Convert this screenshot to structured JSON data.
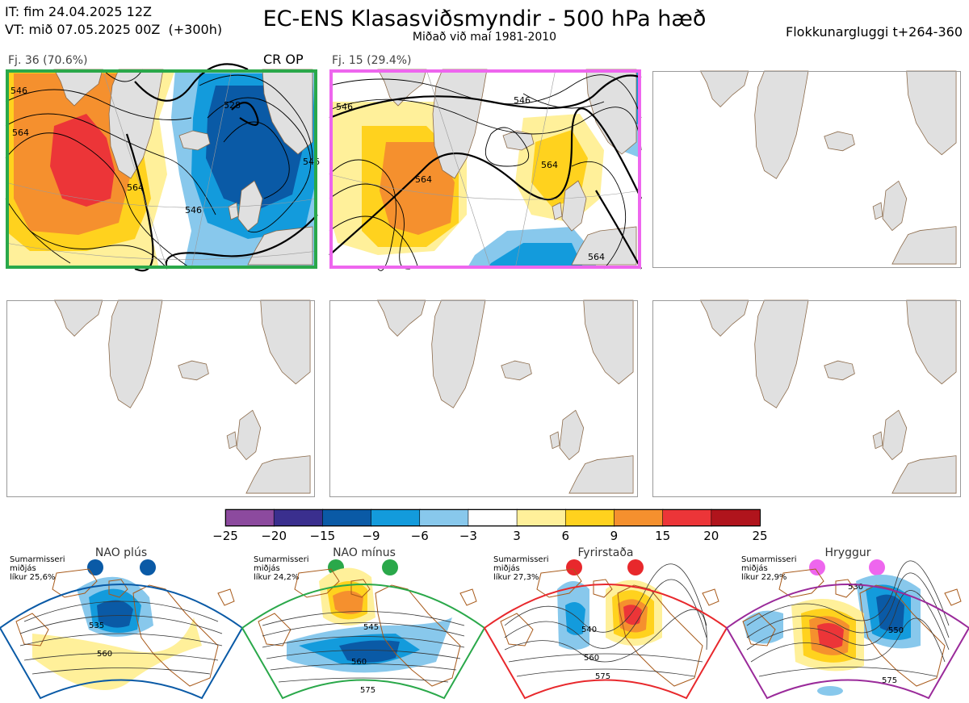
{
  "header": {
    "it_line": "IT: fim 24.04.2025 12Z",
    "vt_line": "VT: mið 07.05.2025 00Z  (+300h)",
    "title": "EC-ENS Klasasviðsmyndir - 500 hPa hæð",
    "subtitle": "Miðað við maí 1981-2010",
    "window": "Flokkunargluggi t+264-360"
  },
  "panels": [
    {
      "label": "Fj. 36 (70.6%)",
      "tag": "CR OP",
      "border": "#2aa84a",
      "contours": [
        "546",
        "528",
        "564",
        "546",
        "546",
        "564"
      ]
    },
    {
      "label": "Fj. 15 (29.4%)",
      "tag": "",
      "border": "#ee66ee",
      "contours": [
        "546",
        "564",
        "546",
        "564",
        "564"
      ]
    },
    {
      "label": "",
      "tag": "",
      "border": "#999999",
      "contours": []
    },
    {
      "label": "",
      "tag": "",
      "border": "#999999",
      "contours": []
    },
    {
      "label": "",
      "tag": "",
      "border": "#999999",
      "contours": []
    },
    {
      "label": "",
      "tag": "",
      "border": "#999999",
      "contours": []
    }
  ],
  "colorbar": {
    "colors": [
      "#8c4a9e",
      "#3a2f8e",
      "#0a5aa6",
      "#139bdc",
      "#88c8ec",
      "#ffffff",
      "#fff09a",
      "#ffd21e",
      "#f5902e",
      "#ec3538",
      "#b0141c"
    ],
    "labels": [
      "−25",
      "−20",
      "−15",
      "−9",
      "−6",
      "−3",
      "3",
      "6",
      "9",
      "15",
      "20",
      "25"
    ]
  },
  "regimes": [
    {
      "title": "NAO plús",
      "info": "Sumarmisseri\nmiðjás\nlíkur 25,6%",
      "color": "#0a5aa6",
      "contours": [
        "535",
        "560"
      ]
    },
    {
      "title": "NAO mínus",
      "info": "Sumarmisseri\nmiðjás\nlíkur 24,2%",
      "color": "#2aa84a",
      "contours": [
        "545",
        "560",
        "575"
      ]
    },
    {
      "title": "Fyrirstaða",
      "info": "Sumarmisseri\nmiðjás\nlíkur 27,3%",
      "color": "#e8282c",
      "contours": [
        "540",
        "560",
        "575"
      ]
    },
    {
      "title": "Hryggur",
      "info": "Sumarmisseri\nmiðjás\nlíkur 22,9%",
      "color": "#9a2a9a",
      "contours": [
        "530",
        "550",
        "575"
      ]
    }
  ]
}
